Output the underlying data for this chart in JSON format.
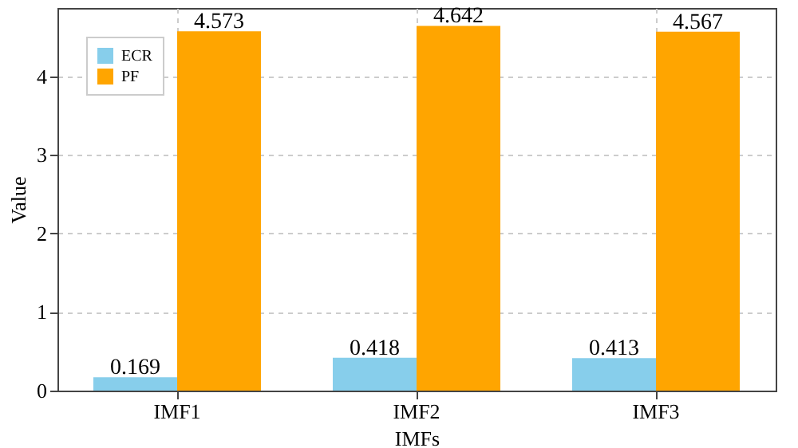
{
  "chart_data": {
    "type": "bar",
    "xlabel": "IMFs",
    "ylabel": "Value",
    "categories": [
      "IMF1",
      "IMF2",
      "IMF3"
    ],
    "series": [
      {
        "name": "ECR",
        "color": "#87ceeb",
        "values": [
          0.169,
          0.418,
          0.413
        ]
      },
      {
        "name": "PF",
        "color": "#ffa500",
        "values": [
          4.573,
          4.642,
          4.567
        ]
      }
    ],
    "ylim": [
      0,
      4.87
    ],
    "yticks": [
      0,
      1,
      2,
      3,
      4
    ],
    "grid": true,
    "legend": "top left",
    "data_labels": true
  }
}
